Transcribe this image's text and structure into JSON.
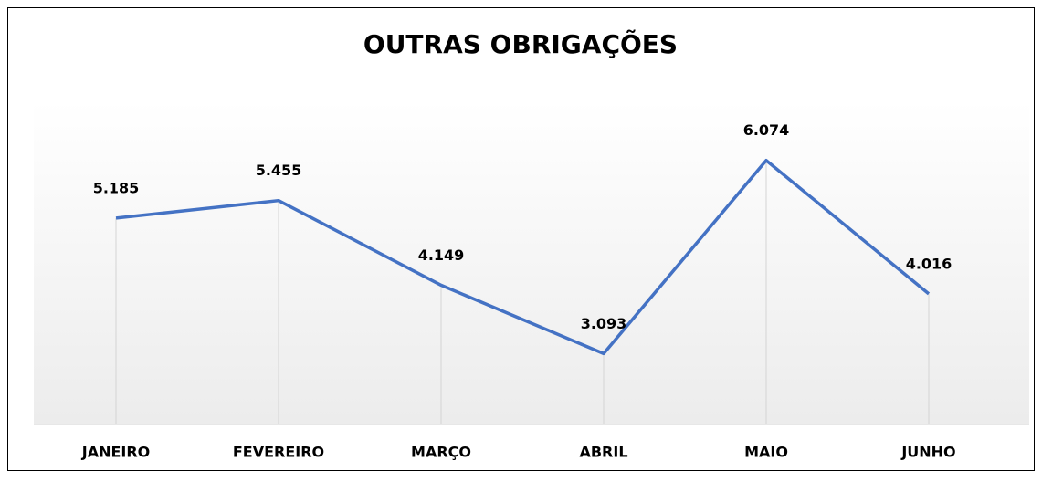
{
  "chart_data": {
    "type": "line",
    "title": "OUTRAS OBRIGAÇÕES",
    "categories": [
      "JANEIRO",
      "FEVEREIRO",
      "MARÇO",
      "ABRIL",
      "MAIO",
      "JUNHO"
    ],
    "values": [
      5185,
      5455,
      4149,
      3093,
      6074,
      4016
    ],
    "value_labels": [
      "5.185",
      "5.455",
      "4.149",
      "3.093",
      "6.074",
      "4.016"
    ],
    "color": "#4472c4",
    "ylim": [
      2000,
      7000
    ]
  }
}
